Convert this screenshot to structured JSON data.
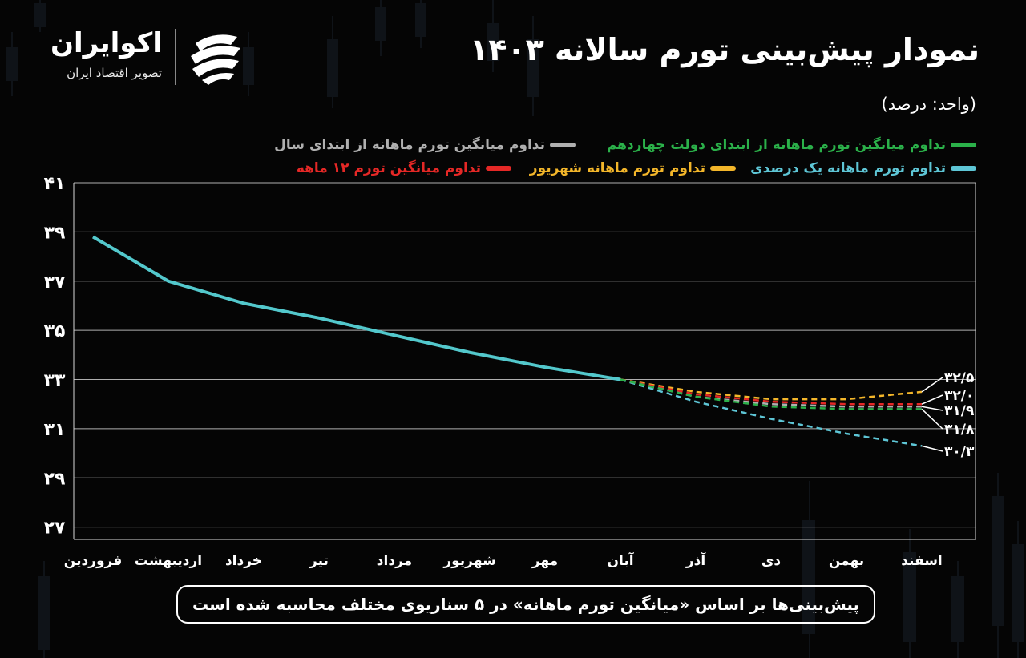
{
  "logo": {
    "name": "اکوایران",
    "tagline": "تصویر اقتصاد ایران"
  },
  "title": "نمودار پیش‌بینی تورم سالانه ۱۴۰۳",
  "unit": "(واحد: درصد)",
  "footer_note": "پیش‌بینی‌ها بر اساس «میانگین تورم ماهانه» در ۵ سناریوی مختلف محاسبه شده است",
  "colors": {
    "background": "#050505",
    "historical": "#53c8cc",
    "grid": "#d9d9d9"
  },
  "chart_data": {
    "type": "line",
    "categories": [
      "فروردین",
      "اردیبهشت",
      "خرداد",
      "تیر",
      "مرداد",
      "شهریور",
      "مهر",
      "آبان",
      "آذر",
      "دی",
      "بهمن",
      "اسفند"
    ],
    "y_tick_labels": [
      "۲۷",
      "۲۹",
      "۳۱",
      "۳۳",
      "۳۵",
      "۳۷",
      "۳۹",
      "۴۱"
    ],
    "y_ticks": [
      27,
      29,
      31,
      33,
      35,
      37,
      39,
      41
    ],
    "ylim": [
      26.5,
      41
    ],
    "grid": "horizontal",
    "legend_position": "top",
    "historical": {
      "color": "#53c8cc",
      "values": [
        38.8,
        37.0,
        36.1,
        35.5,
        34.8,
        34.1,
        33.5,
        33.0
      ]
    },
    "series": [
      {
        "name": "تداوم میانگین تورم ماهانه از ابتدای دولت چهاردهم",
        "color": "#2bb14a",
        "values": [
          null,
          null,
          null,
          null,
          null,
          null,
          null,
          33.0,
          32.3,
          31.9,
          31.8,
          31.8
        ],
        "end_label": "۳۱/۸"
      },
      {
        "name": "تداوم میانگین تورم ماهانه از ابتدای سال",
        "color": "#b0b0b0",
        "values": [
          null,
          null,
          null,
          null,
          null,
          null,
          null,
          33.0,
          32.3,
          32.0,
          31.9,
          31.9
        ],
        "end_label": "۳۱/۹"
      },
      {
        "name": "تداوم تورم ماهانه یک درصدی",
        "color": "#5ec6d6",
        "values": [
          null,
          null,
          null,
          null,
          null,
          null,
          null,
          33.0,
          32.1,
          31.4,
          30.8,
          30.3
        ],
        "end_label": "۳۰/۳"
      },
      {
        "name": "تداوم تورم ماهانه شهریور",
        "color": "#f3b62a",
        "values": [
          null,
          null,
          null,
          null,
          null,
          null,
          null,
          33.0,
          32.5,
          32.2,
          32.2,
          32.5
        ],
        "end_label": "۳۲/۵"
      },
      {
        "name": "تداوم میانگین تورم ۱۲ ماهه",
        "color": "#e52826",
        "values": [
          null,
          null,
          null,
          null,
          null,
          null,
          null,
          33.0,
          32.4,
          32.1,
          32.0,
          32.0
        ],
        "end_label": "۳۲/۰"
      }
    ]
  }
}
